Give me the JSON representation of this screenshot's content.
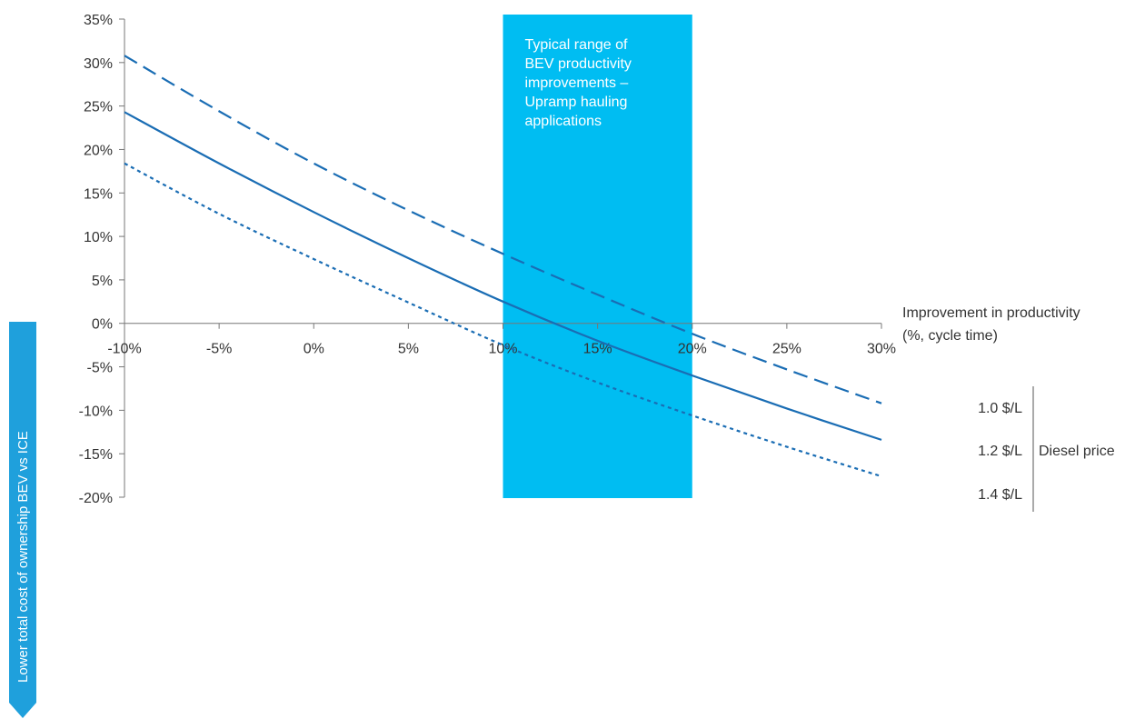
{
  "chart_data": {
    "type": "line",
    "x": [
      -10,
      -5,
      0,
      5,
      10,
      15,
      20,
      25,
      30
    ],
    "x_ticks": [
      "-10%",
      "-5%",
      "0%",
      "5%",
      "10%",
      "15%",
      "20%",
      "25%",
      "30%"
    ],
    "y_ticks": [
      "35%",
      "30%",
      "25%",
      "20%",
      "15%",
      "10%",
      "5%",
      "0%",
      "-5%",
      "-10%",
      "-15%",
      "-20%"
    ],
    "ylim": [
      -20,
      35
    ],
    "xlim": [
      -10,
      30
    ],
    "xlabel_line1": "Improvement in productivity",
    "xlabel_line2": "(%, cycle time)",
    "ylabel": "Lower total cost of ownership BEV vs ICE",
    "series": [
      {
        "name": "1.0 $/L",
        "style": "dashed",
        "values": [
          30.8,
          24.4,
          18.4,
          13.0,
          8.0,
          3.3,
          -1.2,
          -5.3,
          -9.2
        ]
      },
      {
        "name": "1.2 $/L",
        "style": "solid",
        "values": [
          24.3,
          18.4,
          12.8,
          7.5,
          2.5,
          -2.0,
          -6.0,
          -9.8,
          -13.4
        ]
      },
      {
        "name": "1.4 $/L",
        "style": "dotted",
        "values": [
          18.4,
          12.6,
          7.4,
          2.4,
          -2.5,
          -6.8,
          -10.6,
          -14.2,
          -17.6
        ]
      }
    ],
    "band": {
      "x_range": [
        10,
        20
      ],
      "label_lines": [
        "Typical range of",
        "BEV productivity",
        "improvements –",
        "Upramp hauling",
        "applications"
      ]
    },
    "legend_group_label": "Diesel price",
    "line_color": "#1a6db4",
    "band_color": "#00bdf2",
    "grid": false
  }
}
